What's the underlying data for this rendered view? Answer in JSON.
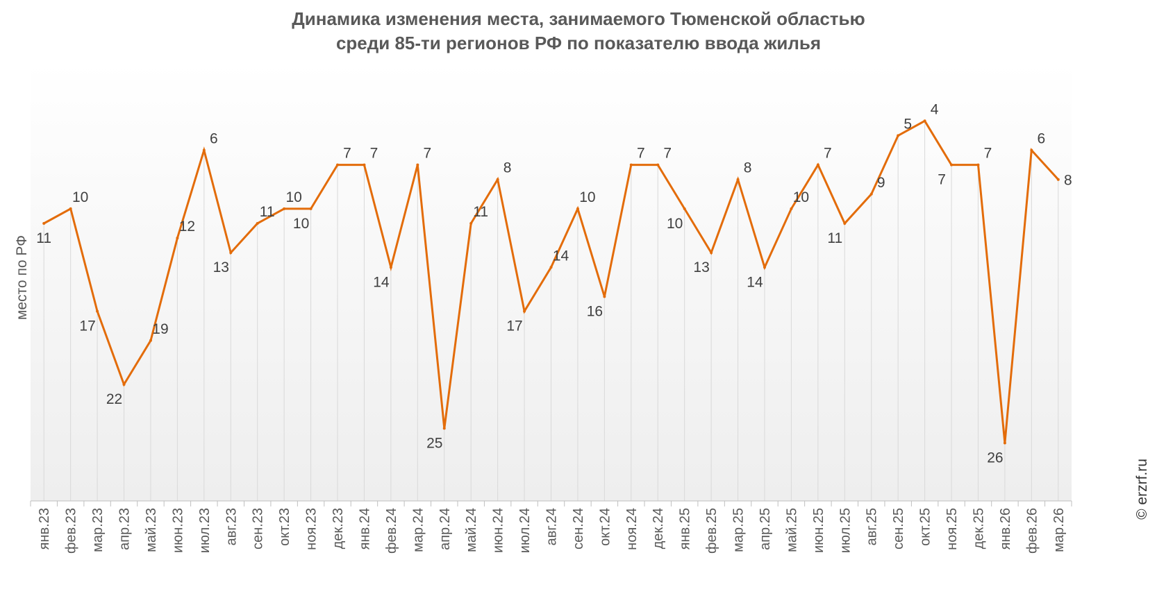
{
  "title_line1": "Динамика изменения места, занимаемого Тюменской областью",
  "title_line2": "среди 85-ти регионов РФ по показателю ввода жилья",
  "credit": "© erzrf.ru",
  "colors": {
    "line": "#E36C0A",
    "grid": "#D9D9D9",
    "text": "#595959"
  },
  "chart_data": {
    "type": "line",
    "ylabel": "место по РФ",
    "y_reversed": true,
    "ylim": [
      1,
      30
    ],
    "grid": true,
    "categories": [
      "янв.23",
      "фев.23",
      "мар.23",
      "апр.23",
      "май.23",
      "июн.23",
      "июл.23",
      "авг.23",
      "сен.23",
      "окт.23",
      "ноя.23",
      "дек.23",
      "янв.24",
      "фев.24",
      "мар.24",
      "апр.24",
      "май.24",
      "июн.24",
      "июл.24",
      "авг.24",
      "сен.24",
      "окт.24",
      "ноя.24",
      "дек.24",
      "янв.25",
      "фев.25",
      "мар.25",
      "апр.25",
      "май.25",
      "июн.25",
      "июл.25",
      "авг.25",
      "сен.25",
      "окт.25",
      "ноя.25",
      "дек.25",
      "янв.26",
      "фев.26",
      "мар.26"
    ],
    "series": [
      {
        "values": [
          11,
          10,
          17,
          22,
          19,
          12,
          6,
          13,
          11,
          10,
          10,
          7,
          7,
          14,
          7,
          25,
          11,
          8,
          17,
          14,
          10,
          16,
          7,
          7,
          10,
          13,
          8,
          14,
          10,
          7,
          11,
          9,
          5,
          4,
          7,
          7,
          26,
          6,
          8
        ]
      }
    ],
    "data_labels": [
      "11",
      "10",
      "17",
      "22",
      "19",
      "12",
      "6",
      "13",
      "11",
      "10",
      "10",
      "7",
      "7",
      "14",
      "7",
      "25",
      "11",
      "8",
      "17",
      "14",
      "10",
      "16",
      "7",
      "7",
      "10",
      "13",
      "8",
      "14",
      "10",
      "7",
      "11",
      "9",
      "5",
      "4",
      "7",
      "7",
      "26",
      "6",
      "8"
    ]
  }
}
